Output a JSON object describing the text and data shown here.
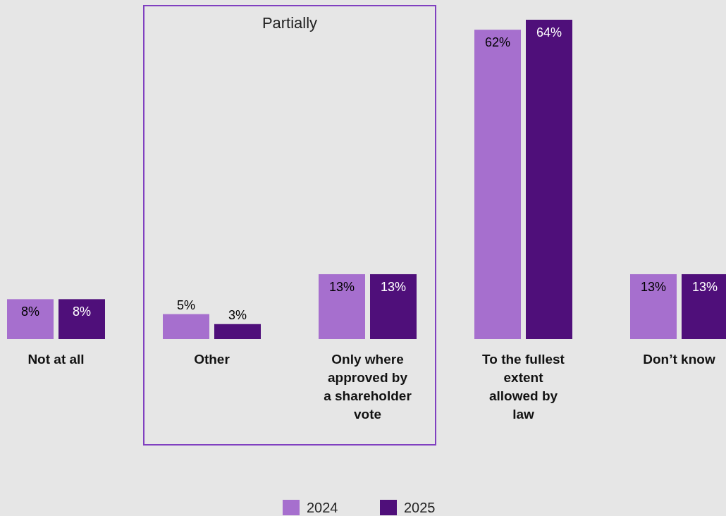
{
  "chart_data": {
    "type": "bar",
    "categories": [
      "Not at all",
      "Other",
      "Only where\napproved by\na shareholder\nvote",
      "To the fullest\nextent\nallowed by\nlaw",
      "Don’t know"
    ],
    "series": [
      {
        "name": "2024",
        "color": "#a66fce",
        "values": [
          8,
          5,
          13,
          62,
          13
        ],
        "value_labels": [
          "8%",
          "5%",
          "13%",
          "62%",
          "13%"
        ]
      },
      {
        "name": "2025",
        "color": "#4f0f7a",
        "values": [
          8,
          3,
          13,
          64,
          13
        ],
        "value_labels": [
          "8%",
          "3%",
          "13%",
          "64%",
          "13%"
        ]
      }
    ],
    "legend": "bottom",
    "annotations": [
      "Partially"
    ]
  }
}
